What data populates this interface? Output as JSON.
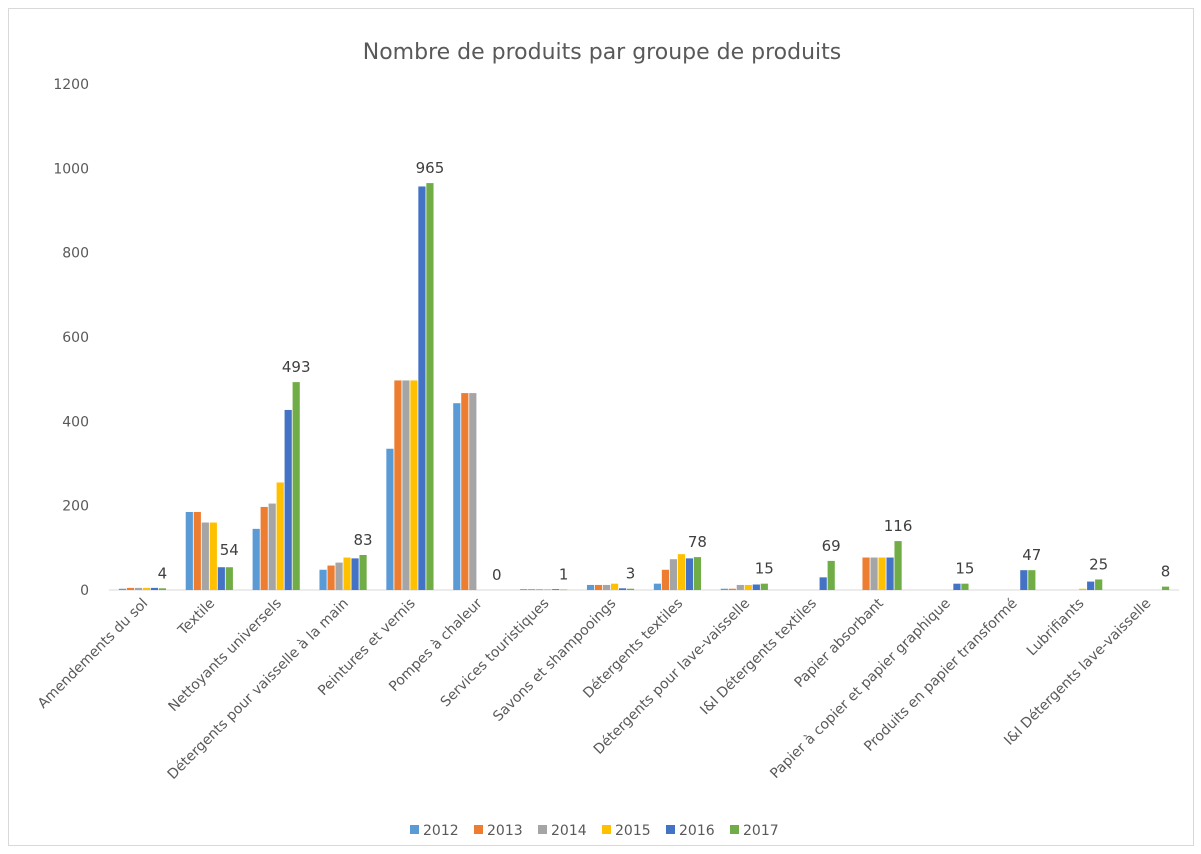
{
  "chart_data": {
    "type": "bar",
    "title": "Nombre de produits par groupe de produits",
    "xlabel": "",
    "ylabel": "",
    "ylim": [
      0,
      1200
    ],
    "yticks": [
      0,
      200,
      400,
      600,
      800,
      1000,
      1200
    ],
    "grid": false,
    "legend_position": "bottom",
    "categories": [
      "Amendements du sol",
      "Textile",
      "Nettoyants universels",
      "Détergents pour vaisselle à la main",
      "Peintures et vernis",
      "Pompes à chaleur",
      "Services touristiques",
      "Savons et shampooings",
      "Détergents textiles",
      "Détergents pour lave-vaisselle",
      "I&I Détergents textiles",
      "Papier absorbant",
      "Papier à copier et papier graphique",
      "Produits en papier transformé",
      "Lubrifiants",
      "I&I Détergents lave-vaisselle"
    ],
    "series": [
      {
        "name": "2012",
        "color": "#5b9bd5",
        "values": [
          3,
          185,
          145,
          48,
          335,
          443,
          2,
          12,
          15,
          3,
          0,
          0,
          0,
          0,
          0,
          0
        ]
      },
      {
        "name": "2013",
        "color": "#ed7d31",
        "values": [
          5,
          185,
          197,
          58,
          497,
          467,
          2,
          12,
          48,
          3,
          0,
          77,
          0,
          0,
          0,
          0
        ]
      },
      {
        "name": "2014",
        "color": "#a5a5a5",
        "values": [
          5,
          160,
          205,
          65,
          497,
          467,
          2,
          12,
          73,
          12,
          0,
          77,
          0,
          0,
          0,
          0
        ]
      },
      {
        "name": "2015",
        "color": "#ffc000",
        "values": [
          5,
          160,
          255,
          77,
          497,
          0,
          2,
          15,
          85,
          12,
          0,
          77,
          0,
          0,
          3,
          0
        ]
      },
      {
        "name": "2016",
        "color": "#4472c4",
        "values": [
          5,
          54,
          427,
          75,
          957,
          0,
          2,
          4,
          75,
          13,
          30,
          77,
          15,
          47,
          20,
          0
        ]
      },
      {
        "name": "2017",
        "color": "#70ad47",
        "values": [
          4,
          54,
          493,
          83,
          965,
          0,
          1,
          3,
          78,
          15,
          69,
          116,
          15,
          47,
          25,
          8
        ]
      }
    ],
    "data_labels": [
      "4",
      "54",
      "493",
      "83",
      "965",
      "0",
      "1",
      "3",
      "78",
      "15",
      "69",
      "116",
      "15",
      "47",
      "25",
      "8"
    ]
  }
}
